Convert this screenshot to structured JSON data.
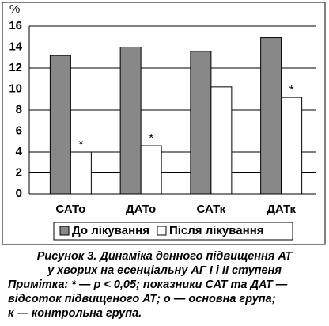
{
  "chart_data": {
    "type": "bar",
    "y_unit": "%",
    "categories": [
      "САТо",
      "ДАТо",
      "САТк",
      "ДАТк"
    ],
    "series": [
      {
        "name": "До лікування",
        "color": "#888888",
        "values": [
          13.2,
          14.0,
          13.6,
          14.9
        ]
      },
      {
        "name": "Після лікування",
        "color": "#ffffff",
        "values": [
          4.0,
          4.6,
          10.2,
          9.2
        ],
        "markers": [
          "*",
          "*",
          null,
          "*"
        ]
      }
    ],
    "ylim": [
      0,
      16
    ],
    "yticks": [
      0,
      2,
      4,
      6,
      8,
      10,
      12,
      14,
      16
    ],
    "grid": true,
    "legend": "bottom"
  },
  "caption": {
    "title_lines": [
      "Рисунок 3. Динаміка денного підвищення АТ",
      "у хворих на есенціальну АГ І і ІІ ступеня"
    ],
    "note_lines": [
      "Примітка: * — р < 0,05; показники САТ та ДАТ —",
      "відсоток підвищеного АТ; о — основна група;",
      "к — контрольна група."
    ]
  }
}
